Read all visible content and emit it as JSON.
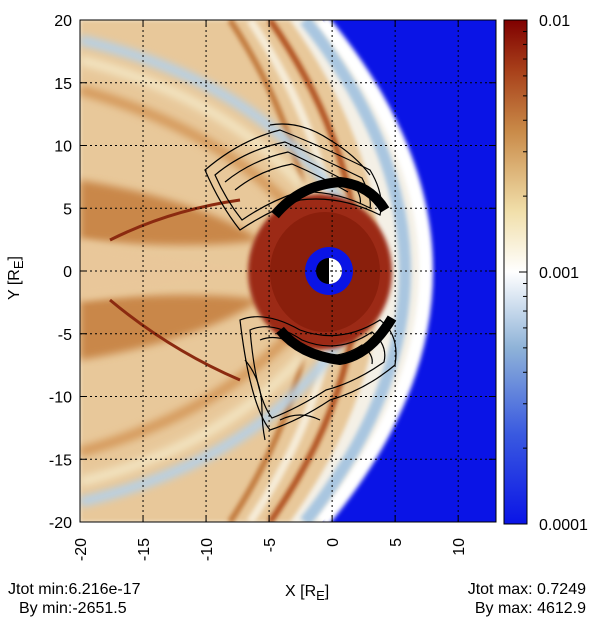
{
  "chart_data": {
    "type": "heatmap",
    "xlabel": {
      "main": "X [R",
      "sub": "E",
      "close": "]"
    },
    "ylabel": {
      "main": "Y [R",
      "sub": "E",
      "close": "]"
    },
    "xlim": [
      -20,
      13
    ],
    "ylim": [
      -20,
      20
    ],
    "x_ticks": [
      -20,
      -15,
      -10,
      -5,
      0,
      5,
      10
    ],
    "x_tick_labels": [
      "-20",
      "-15",
      "-10",
      "-5",
      "0",
      "5",
      "10"
    ],
    "y_ticks": [
      20,
      15,
      10,
      5,
      0,
      -5,
      -10,
      -15,
      -20
    ],
    "y_tick_labels": [
      "20",
      "15",
      "10",
      "5",
      "0",
      "-5",
      "-10",
      "-15",
      "-20"
    ],
    "grid": true,
    "colorbar": {
      "scale": "log",
      "range": [
        0.0001,
        0.01
      ],
      "tick_labels": [
        "0.01",
        "0.001",
        "0.0001"
      ],
      "tick_values": [
        0.01,
        0.001,
        0.0001
      ],
      "colors": {
        "low": "#0a14e6",
        "mid": "#ffffff",
        "high": "#8b0000"
      }
    },
    "stats": {
      "jtot_min": "Jtot min:6.216e-17",
      "by_min": "By min:-2651.5",
      "jtot_max": "Jtot max: 0.7249",
      "by_max": "By max: 4612.9"
    }
  }
}
